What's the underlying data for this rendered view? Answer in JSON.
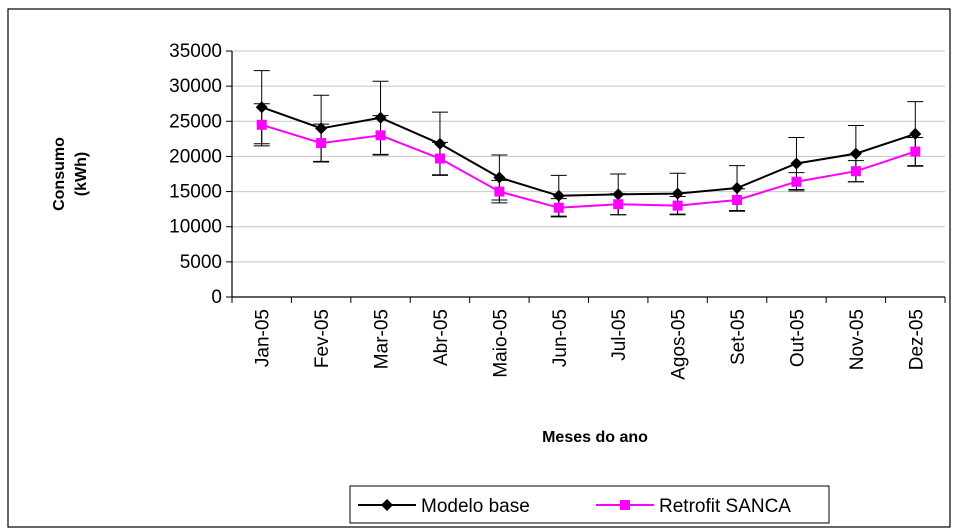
{
  "chart_data": {
    "type": "line",
    "title": "",
    "xlabel": "Meses do ano",
    "ylabel_lines": [
      "Consumo",
      "(kWh)"
    ],
    "categories": [
      "Jan-05",
      "Fev-05",
      "Mar-05",
      "Abr-05",
      "Maio-05",
      "Jun-05",
      "Jul-05",
      "Agos-05",
      "Set-05",
      "Out-05",
      "Nov-05",
      "Dez-05"
    ],
    "y_ticks": [
      "0",
      "5000",
      "10000",
      "15000",
      "20000",
      "25000",
      "30000",
      "35000"
    ],
    "ylim": [
      0,
      35000
    ],
    "grid": true,
    "legend_position": "bottom",
    "series": [
      {
        "name": "Modelo base",
        "color": "#000000",
        "marker": "diamond",
        "values": [
          27000,
          24000,
          25500,
          21800,
          17000,
          14400,
          14600,
          14700,
          15500,
          19000,
          20400,
          23200
        ],
        "error": [
          5200,
          4700,
          5200,
          4500,
          3200,
          2900,
          2900,
          2900,
          3200,
          3700,
          4000,
          4600
        ]
      },
      {
        "name": "Retrofit SANCA",
        "color": "#ff00ff",
        "marker": "square",
        "values": [
          24500,
          21900,
          23000,
          19700,
          15000,
          12700,
          13200,
          13000,
          13800,
          16400,
          17900,
          20700
        ],
        "error": [
          3000,
          2700,
          2800,
          2300,
          1600,
          1300,
          1500,
          1300,
          1600,
          1300,
          1500,
          2000
        ]
      }
    ]
  }
}
